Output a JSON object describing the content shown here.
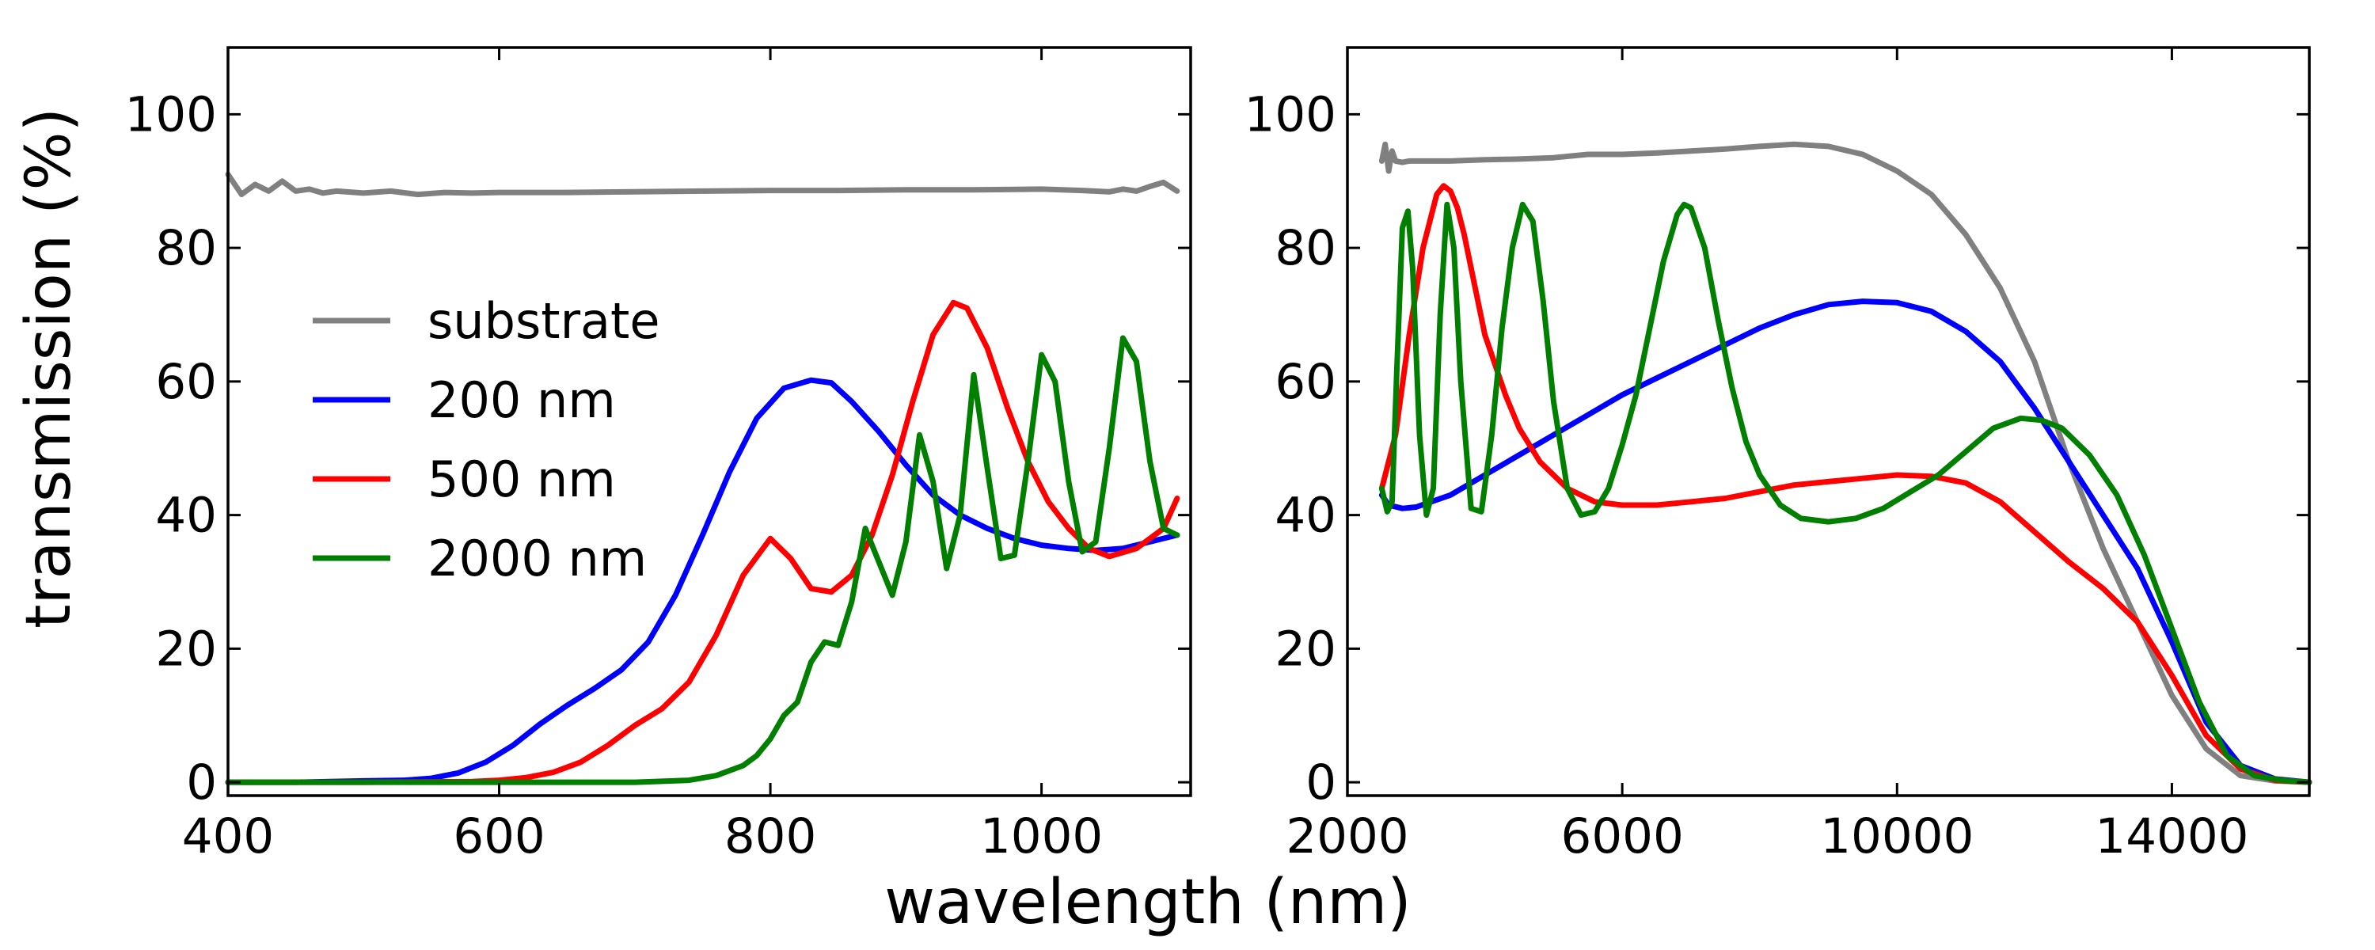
{
  "chart_data": {
    "type": "line",
    "ylabel": "transmission (%)",
    "xlabel": "wavelength (nm)",
    "colors": {
      "substrate": "#808080",
      "200 nm": "#0000ff",
      "500 nm": "#ff0000",
      "2000 nm": "#007f00"
    },
    "legend": {
      "location": "left-center of left panel",
      "entries": [
        "substrate",
        "200 nm",
        "500 nm",
        "2000 nm"
      ]
    },
    "panels": [
      {
        "id": "visible",
        "xlim": [
          400,
          1110
        ],
        "ylim": [
          -2,
          110
        ],
        "xticks": [
          400,
          600,
          800,
          1000
        ],
        "xtick_labels": [
          "400",
          "600",
          "800",
          "1000"
        ],
        "yticks": [
          0,
          20,
          40,
          60,
          80,
          100
        ],
        "ytick_labels": [
          "0",
          "20",
          "40",
          "60",
          "80",
          "100"
        ],
        "series": [
          {
            "name": "substrate",
            "x": [
              400,
              410,
              420,
              430,
              440,
              450,
              460,
              470,
              480,
              500,
              520,
              540,
              560,
              580,
              600,
              650,
              700,
              750,
              800,
              850,
              900,
              950,
              1000,
              1030,
              1050,
              1060,
              1070,
              1080,
              1090,
              1100
            ],
            "y": [
              91,
              88,
              89.5,
              88.5,
              90,
              88.5,
              88.8,
              88.2,
              88.5,
              88.2,
              88.5,
              88,
              88.3,
              88.2,
              88.3,
              88.3,
              88.4,
              88.5,
              88.6,
              88.6,
              88.7,
              88.7,
              88.8,
              88.6,
              88.4,
              88.8,
              88.5,
              89.2,
              89.8,
              88.5
            ]
          },
          {
            "name": "200 nm",
            "x": [
              400,
              450,
              500,
              530,
              550,
              570,
              590,
              610,
              630,
              650,
              670,
              690,
              710,
              730,
              750,
              770,
              790,
              810,
              830,
              845,
              860,
              880,
              900,
              920,
              940,
              960,
              980,
              1000,
              1020,
              1040,
              1060,
              1080,
              1100
            ],
            "y": [
              0,
              0,
              0.2,
              0.3,
              0.6,
              1.4,
              3,
              5.5,
              8.7,
              11.5,
              14,
              16.8,
              21,
              28,
              37,
              46.5,
              54.5,
              59,
              60.2,
              59.8,
              57,
              52.5,
              47.5,
              43,
              40,
              38,
              36.5,
              35.5,
              35,
              34.7,
              35,
              36,
              37
            ]
          },
          {
            "name": "500 nm",
            "x": [
              400,
              500,
              580,
              600,
              620,
              640,
              660,
              680,
              700,
              720,
              740,
              760,
              780,
              800,
              815,
              830,
              845,
              860,
              875,
              890,
              905,
              920,
              935,
              945,
              960,
              975,
              990,
              1005,
              1020,
              1035,
              1050,
              1070,
              1090,
              1100
            ],
            "y": [
              0,
              0,
              0.1,
              0.3,
              0.7,
              1.5,
              3,
              5.5,
              8.5,
              11,
              15,
              22,
              31,
              36.5,
              33.5,
              29,
              28.5,
              31,
              37,
              46,
              57,
              67,
              71.8,
              71,
              65,
              56,
              48,
              42,
              38,
              35,
              33.8,
              35,
              38,
              42.5
            ]
          },
          {
            "name": "2000 nm",
            "x": [
              400,
              600,
              700,
              740,
              760,
              780,
              790,
              800,
              810,
              820,
              830,
              840,
              850,
              860,
              870,
              880,
              890,
              900,
              910,
              920,
              930,
              940,
              950,
              960,
              970,
              980,
              990,
              1000,
              1010,
              1020,
              1030,
              1040,
              1050,
              1060,
              1070,
              1080,
              1090,
              1100
            ],
            "y": [
              0,
              0,
              0,
              0.3,
              1,
              2.5,
              4,
              6.5,
              10,
              12,
              18,
              21,
              20.5,
              27,
              38,
              33,
              28,
              36,
              52,
              45,
              32,
              40,
              61,
              47,
              33.5,
              34,
              48,
              64,
              60,
              45,
              34.5,
              36,
              50,
              66.5,
              63,
              48,
              38,
              37
            ]
          }
        ]
      },
      {
        "id": "infrared",
        "xlim": [
          2000,
          16000
        ],
        "ylim": [
          -2,
          110
        ],
        "xticks": [
          2000,
          6000,
          10000,
          14000
        ],
        "xtick_labels": [
          "2000",
          "6000",
          "10000",
          "14000"
        ],
        "yticks": [
          0,
          20,
          40,
          60,
          80,
          100
        ],
        "ytick_labels": [
          "0",
          "20",
          "40",
          "60",
          "80",
          "100"
        ],
        "series": [
          {
            "name": "substrate",
            "x": [
              2500,
              2550,
              2600,
              2650,
              2700,
              2800,
              2900,
              3000,
              3500,
              4000,
              4500,
              5000,
              5500,
              6000,
              6500,
              7000,
              7500,
              8000,
              8500,
              9000,
              9500,
              10000,
              10500,
              11000,
              11500,
              12000,
              12500,
              13000,
              13500,
              14000,
              14500,
              15000,
              15500,
              16000
            ],
            "y": [
              93,
              95.5,
              91.5,
              94.5,
              93,
              92.8,
              93,
              93,
              93,
              93.2,
              93.3,
              93.5,
              94,
              94,
              94.2,
              94.5,
              94.8,
              95.2,
              95.5,
              95.2,
              94,
              91.5,
              88,
              82,
              74,
              63,
              48,
              35,
              24,
              13,
              5,
              1,
              0.2,
              0
            ]
          },
          {
            "name": "200 nm",
            "x": [
              2500,
              2600,
              2800,
              3000,
              3500,
              4000,
              4500,
              5000,
              5500,
              6000,
              6500,
              7000,
              7500,
              8000,
              8500,
              9000,
              9500,
              10000,
              10500,
              11000,
              11500,
              12000,
              12500,
              13000,
              13500,
              14000,
              14500,
              15000,
              15500,
              16000
            ],
            "y": [
              43,
              41.5,
              41,
              41.2,
              43,
              46,
              49,
              52,
              55,
              58,
              60.5,
              63,
              65.5,
              68,
              70,
              71.5,
              72,
              71.8,
              70.5,
              67.5,
              63,
              56,
              48,
              40,
              32,
              21,
              9,
              2.5,
              0.5,
              0
            ]
          },
          {
            "name": "500 nm",
            "x": [
              2500,
              2700,
              2900,
              3100,
              3300,
              3400,
              3500,
              3600,
              3700,
              3800,
              3900,
              4000,
              4100,
              4200,
              4300,
              4500,
              4800,
              5200,
              5600,
              6000,
              6500,
              7000,
              7500,
              8000,
              8500,
              9000,
              9500,
              10000,
              10500,
              11000,
              11500,
              12000,
              12500,
              13000,
              13500,
              14000,
              14500,
              15000,
              15500,
              16000
            ],
            "y": [
              44,
              52,
              67,
              80,
              88,
              89.3,
              88.5,
              86,
              82,
              77,
              72,
              67,
              64,
              61,
              58,
              53,
              48,
              44,
              42,
              41.5,
              41.5,
              42,
              42.5,
              43.5,
              44.5,
              45,
              45.5,
              46,
              45.8,
              44.8,
              42,
              37.5,
              33,
              29,
              24,
              16,
              7,
              2,
              0.3,
              0
            ]
          },
          {
            "name": "2000 nm",
            "x": [
              2500,
              2580,
              2650,
              2720,
              2800,
              2880,
              2950,
              3050,
              3150,
              3250,
              3350,
              3450,
              3550,
              3650,
              3800,
              3950,
              4100,
              4250,
              4400,
              4550,
              4700,
              4850,
              5000,
              5200,
              5400,
              5600,
              5800,
              6000,
              6200,
              6400,
              6600,
              6800,
              6900,
              7000,
              7200,
              7400,
              7600,
              7800,
              8000,
              8300,
              8600,
              9000,
              9400,
              9800,
              10200,
              10600,
              11000,
              11400,
              11800,
              12100,
              12400,
              12800,
              13200,
              13600,
              14000,
              14400,
              14800,
              15200,
              15600,
              16000
            ],
            "y": [
              44,
              40.5,
              42,
              62,
              83,
              85.5,
              77,
              52,
              40,
              44,
              70,
              86.5,
              80,
              60,
              41,
              40.5,
              52,
              68,
              80,
              86.5,
              84,
              72,
              57,
              44,
              40,
              40.5,
              44,
              50.5,
              58,
              68,
              78,
              85,
              86.5,
              86,
              80,
              69,
              59,
              51,
              46,
              41.5,
              39.5,
              39,
              39.5,
              41,
              43.5,
              46,
              49.5,
              53,
              54.5,
              54.2,
              53,
              49,
              43,
              34,
              23,
              12,
              4,
              1,
              0.3,
              0
            ]
          }
        ]
      }
    ]
  }
}
